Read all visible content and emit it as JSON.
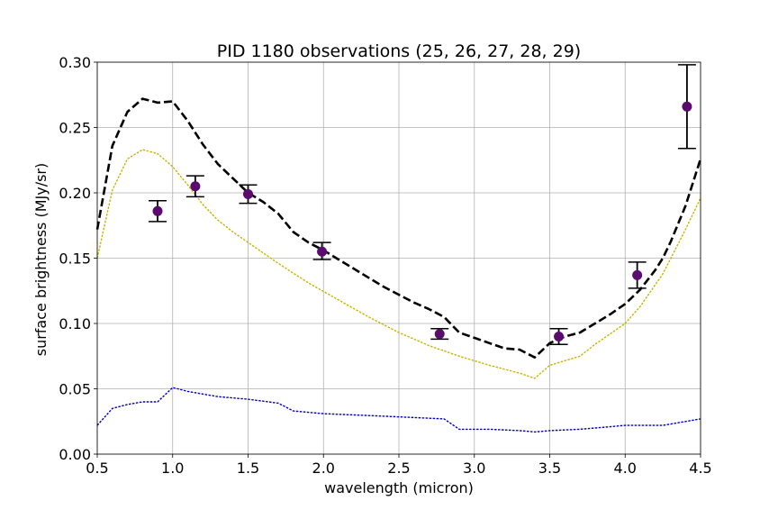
{
  "chart_data": {
    "type": "line",
    "title": "PID 1180 observations (25, 26, 27, 28, 29)",
    "xlabel": "wavelength (micron)",
    "ylabel": "surface brightness (MJy/sr)",
    "xlim": [
      0.5,
      4.5
    ],
    "ylim": [
      0.0,
      0.3
    ],
    "xticks": [
      0.5,
      1.0,
      1.5,
      2.0,
      2.5,
      3.0,
      3.5,
      4.0,
      4.5
    ],
    "xtick_labels": [
      "0.5",
      "1.0",
      "1.5",
      "2.0",
      "2.5",
      "3.0",
      "3.5",
      "4.0",
      "4.5"
    ],
    "yticks": [
      0.0,
      0.05,
      0.1,
      0.15,
      0.2,
      0.25,
      0.3
    ],
    "ytick_labels": [
      "0.00",
      "0.05",
      "0.10",
      "0.15",
      "0.20",
      "0.25",
      "0.30"
    ],
    "grid": true,
    "series": [
      {
        "color": "#000000",
        "style": "dashed-thick",
        "x": [
          0.5,
          0.6,
          0.7,
          0.8,
          0.9,
          1.0,
          1.1,
          1.2,
          1.3,
          1.4,
          1.5,
          1.6,
          1.7,
          1.8,
          1.9,
          2.0,
          2.1,
          2.2,
          2.3,
          2.4,
          2.5,
          2.6,
          2.7,
          2.8,
          2.9,
          3.0,
          3.1,
          3.2,
          3.3,
          3.4,
          3.5,
          3.6,
          3.7,
          3.8,
          3.9,
          4.0,
          4.1,
          4.2,
          4.25,
          4.3,
          4.4,
          4.5
        ],
        "y": [
          0.172,
          0.236,
          0.262,
          0.272,
          0.269,
          0.27,
          0.255,
          0.237,
          0.222,
          0.211,
          0.2,
          0.193,
          0.184,
          0.17,
          0.162,
          0.156,
          0.149,
          0.142,
          0.135,
          0.128,
          0.122,
          0.116,
          0.111,
          0.105,
          0.093,
          0.089,
          0.085,
          0.081,
          0.08,
          0.074,
          0.085,
          0.09,
          0.093,
          0.1,
          0.107,
          0.115,
          0.126,
          0.141,
          0.15,
          0.162,
          0.19,
          0.226
        ]
      },
      {
        "color": "#c8b400",
        "style": "dotted",
        "x": [
          0.5,
          0.6,
          0.7,
          0.8,
          0.9,
          1.0,
          1.1,
          1.2,
          1.3,
          1.4,
          1.5,
          1.7,
          1.9,
          2.1,
          2.3,
          2.5,
          2.7,
          2.9,
          3.1,
          3.3,
          3.4,
          3.5,
          3.7,
          3.8,
          3.9,
          4.0,
          4.1,
          4.25,
          4.4,
          4.5
        ],
        "y": [
          0.15,
          0.202,
          0.226,
          0.233,
          0.23,
          0.22,
          0.206,
          0.191,
          0.179,
          0.17,
          0.162,
          0.146,
          0.131,
          0.118,
          0.105,
          0.093,
          0.083,
          0.075,
          0.068,
          0.062,
          0.058,
          0.068,
          0.075,
          0.084,
          0.092,
          0.1,
          0.113,
          0.138,
          0.172,
          0.196
        ]
      },
      {
        "color": "#0000cc",
        "style": "dotted",
        "x": [
          0.5,
          0.6,
          0.7,
          0.8,
          0.9,
          1.0,
          1.1,
          1.2,
          1.3,
          1.5,
          1.7,
          1.8,
          2.0,
          2.2,
          2.4,
          2.6,
          2.8,
          2.9,
          3.1,
          3.3,
          3.4,
          3.5,
          3.7,
          3.9,
          4.0,
          4.25,
          4.5
        ],
        "y": [
          0.022,
          0.035,
          0.038,
          0.04,
          0.04,
          0.051,
          0.048,
          0.046,
          0.044,
          0.042,
          0.039,
          0.033,
          0.031,
          0.03,
          0.029,
          0.028,
          0.027,
          0.019,
          0.019,
          0.018,
          0.017,
          0.018,
          0.019,
          0.021,
          0.022,
          0.022,
          0.027
        ]
      }
    ],
    "points": {
      "color": "#5b0a6e",
      "x": [
        0.9,
        1.15,
        1.5,
        1.99,
        2.77,
        3.56,
        4.08,
        4.41
      ],
      "y": [
        0.186,
        0.205,
        0.199,
        0.155,
        0.092,
        0.09,
        0.137,
        0.266
      ],
      "err_low": [
        0.178,
        0.197,
        0.192,
        0.149,
        0.088,
        0.084,
        0.127,
        0.234
      ],
      "err_high": [
        0.194,
        0.213,
        0.206,
        0.162,
        0.096,
        0.096,
        0.147,
        0.298
      ]
    }
  }
}
